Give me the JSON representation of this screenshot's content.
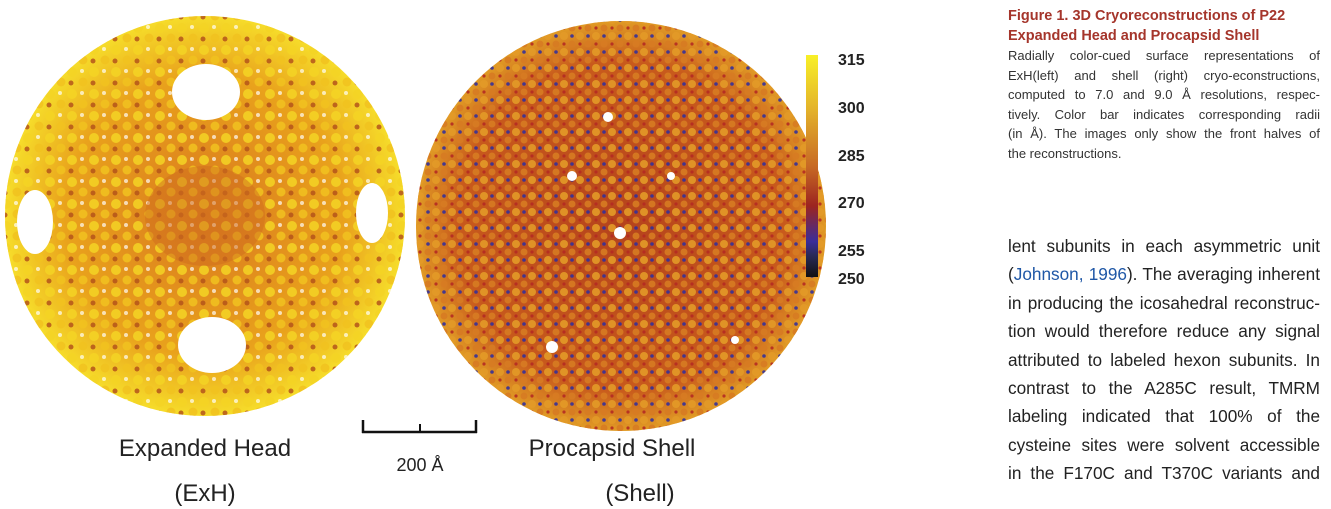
{
  "figure": {
    "panels": [
      {
        "name": "Expanded Head",
        "abbr": "(ExH)"
      },
      {
        "name": "Procapsid Shell",
        "abbr": "(Shell)"
      }
    ],
    "scale_bar": "200 Å",
    "color_bar": {
      "ticks": [
        315,
        300,
        285,
        270,
        255,
        250
      ]
    }
  },
  "caption": {
    "title_lines": [
      "Figure 1. 3D Cryoreconstructions of P22",
      "Expanded Head and Procapsid Shell"
    ],
    "lines": [
      "Radially color-cued surface representations of",
      "ExH(left) and shell (right) cryo-econstructions,",
      "computed to 7.0 and 9.0 Å resolutions, respec-",
      "tively. Color bar indicates corresponding radii",
      "(in Å). The images only show the front halves of",
      "the reconstructions."
    ]
  },
  "body": {
    "lines": [
      "lent subunits in each asymmetric unit",
      [
        "(",
        "Johnson, 1996",
        "). The averaging inherent"
      ],
      "in producing the icosahedral reconstruc-",
      "tion would therefore reduce any signal",
      "attributed to labeled hexon subunits. In",
      "contrast to the A285C result, TMRM",
      "labeling indicated that 100% of the",
      "cysteine sites were solvent accessible",
      "in the F170C and T370C variants and"
    ]
  }
}
